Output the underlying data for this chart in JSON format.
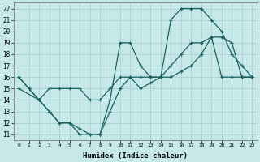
{
  "xlabel": "Humidex (Indice chaleur)",
  "background_color": "#c6e8e8",
  "grid_color": "#aed4d4",
  "line_color": "#1a6060",
  "xlim": [
    -0.5,
    23.5
  ],
  "ylim": [
    10.5,
    22.5
  ],
  "xticks": [
    0,
    1,
    2,
    3,
    4,
    5,
    6,
    7,
    8,
    9,
    10,
    11,
    12,
    13,
    14,
    15,
    16,
    17,
    18,
    19,
    20,
    21,
    22,
    23
  ],
  "yticks": [
    11,
    12,
    13,
    14,
    15,
    16,
    17,
    18,
    19,
    20,
    21,
    22
  ],
  "line1_x": [
    0,
    1,
    2,
    3,
    4,
    5,
    6,
    7,
    8,
    9,
    10,
    11,
    12,
    13,
    14,
    15,
    16,
    17,
    18,
    19,
    20,
    21,
    22,
    23
  ],
  "line1_y": [
    16,
    15,
    14,
    13,
    12,
    12,
    11,
    11,
    11,
    14,
    19,
    19,
    17,
    16,
    16,
    21,
    22,
    22,
    22,
    21,
    20,
    18,
    17,
    16
  ],
  "line2_x": [
    0,
    2,
    3,
    4,
    5,
    6,
    7,
    8,
    9,
    10,
    11,
    12,
    13,
    14,
    15,
    16,
    17,
    18,
    19,
    20,
    21,
    22,
    23
  ],
  "line2_y": [
    15,
    14,
    15,
    15,
    15,
    15,
    14,
    14,
    15,
    16,
    16,
    16,
    16,
    16,
    17,
    18,
    19,
    19,
    19.5,
    16,
    16,
    16,
    16
  ],
  "line3_x": [
    0,
    1,
    2,
    3,
    4,
    5,
    6,
    7,
    8,
    9,
    10,
    11,
    12,
    13,
    14,
    15,
    16,
    17,
    18,
    19,
    20,
    21,
    22,
    23
  ],
  "line3_y": [
    16,
    15,
    14,
    13,
    12,
    12,
    11.5,
    11,
    11,
    13,
    15,
    16,
    15,
    15.5,
    16,
    16,
    16.5,
    17,
    18,
    19.5,
    19.5,
    19,
    16,
    16
  ]
}
